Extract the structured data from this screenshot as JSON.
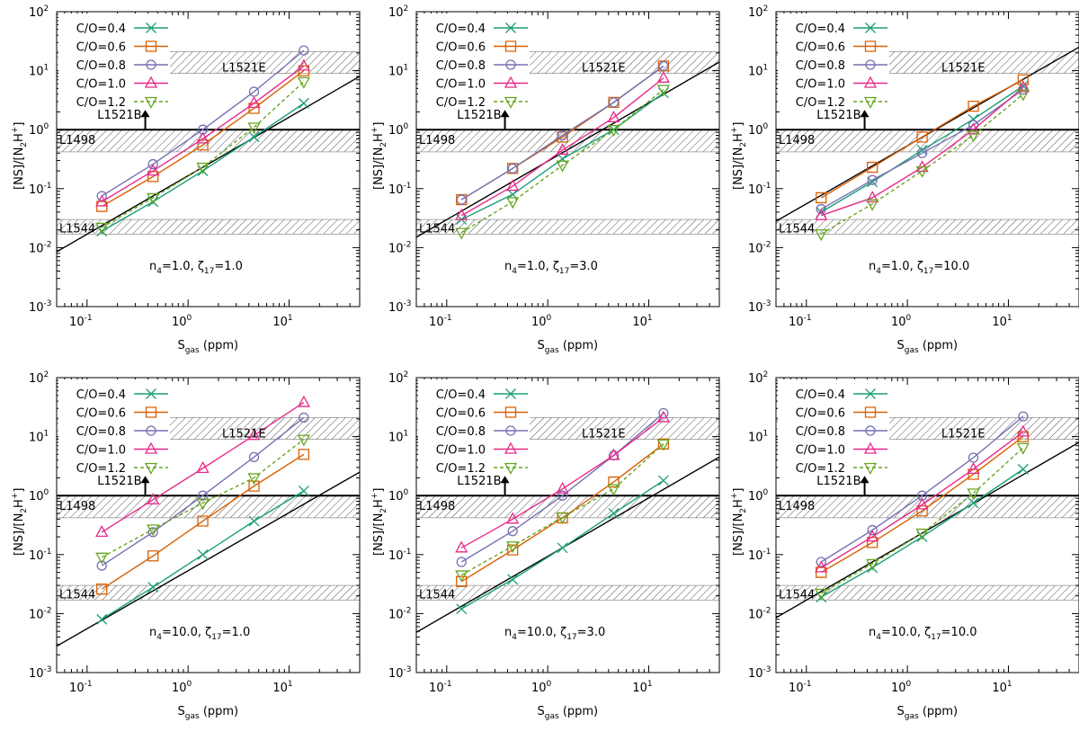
{
  "chart_data": {
    "type": "line",
    "layout": "2x3 grid of log-log panels",
    "xlabel": "S_gas (ppm)",
    "ylabel": "[NS]/[N2H+]",
    "xscale": "log",
    "yscale": "log",
    "xlim": [
      0.05,
      50
    ],
    "ylim": [
      0.001,
      100
    ],
    "x_tick_labels": [
      "10^-1",
      "10^0",
      "10^1"
    ],
    "y_tick_labels": [
      "10^-3",
      "10^-2",
      "10^-1",
      "10^0",
      "10^1",
      "10^2"
    ],
    "x": [
      0.14,
      0.45,
      1.4,
      4.5,
      14
    ],
    "legend": [
      "C/O=0.4",
      "C/O=0.6",
      "C/O=0.8",
      "C/O=1.0",
      "C/O=1.2"
    ],
    "series_styles": [
      {
        "name": "C/O=0.4",
        "color": "#1b9e77",
        "marker": "cross",
        "dash": "solid"
      },
      {
        "name": "C/O=0.6",
        "color": "#d95f02",
        "marker": "square",
        "dash": "solid"
      },
      {
        "name": "C/O=0.8",
        "color": "#7570b3",
        "marker": "circle",
        "dash": "solid"
      },
      {
        "name": "C/O=1.0",
        "color": "#e7298a",
        "marker": "triangle-up",
        "dash": "solid"
      },
      {
        "name": "C/O=1.2",
        "color": "#66a61e",
        "marker": "triangle-down",
        "dash": "dashed"
      }
    ],
    "observations": [
      {
        "name": "L1521E",
        "type": "band",
        "range": [
          9,
          21
        ]
      },
      {
        "name": "L1498",
        "type": "band",
        "range": [
          0.42,
          1.0
        ]
      },
      {
        "name": "L1544",
        "type": "band",
        "range": [
          0.017,
          0.03
        ]
      },
      {
        "name": "L1521B",
        "type": "lower-limit",
        "value": 1.0,
        "x": 0.32
      }
    ],
    "panels": [
      {
        "annotation": {
          "n_sub": "4",
          "n_val": "1.0",
          "zeta_sub": "17",
          "zeta_val": "1.0"
        },
        "series": [
          {
            "name": "C/O=0.4",
            "values": [
              0.019,
              0.06,
              0.2,
              0.75,
              2.8
            ]
          },
          {
            "name": "C/O=0.6",
            "values": [
              0.05,
              0.16,
              0.55,
              2.3,
              10
            ]
          },
          {
            "name": "C/O=0.8",
            "values": [
              0.075,
              0.26,
              1.0,
              4.4,
              22
            ]
          },
          {
            "name": "C/O=1.0",
            "values": [
              0.06,
              0.2,
              0.7,
              2.8,
              12
            ]
          },
          {
            "name": "C/O=1.2",
            "values": [
              0.022,
              0.07,
              0.23,
              1.1,
              6.5
            ]
          }
        ],
        "trend_line": {
          "x": [
            0.05,
            50
          ],
          "y": [
            0.0085,
            8
          ]
        }
      },
      {
        "annotation": {
          "n_sub": "4",
          "n_val": "1.0",
          "zeta_sub": "17",
          "zeta_val": "3.0"
        },
        "series": [
          {
            "name": "C/O=0.4",
            "values": [
              0.03,
              0.08,
              0.32,
              1.0,
              4.2
            ]
          },
          {
            "name": "C/O=0.6",
            "values": [
              0.065,
              0.22,
              0.75,
              2.9,
              12
            ]
          },
          {
            "name": "C/O=0.8",
            "values": [
              0.065,
              0.22,
              0.8,
              2.9,
              12
            ]
          },
          {
            "name": "C/O=1.0",
            "values": [
              0.035,
              0.11,
              0.45,
              1.6,
              7.5
            ]
          },
          {
            "name": "C/O=1.2",
            "values": [
              0.018,
              0.06,
              0.25,
              1.0,
              4.8
            ]
          }
        ],
        "trend_line": {
          "x": [
            0.05,
            50
          ],
          "y": [
            0.015,
            14
          ]
        }
      },
      {
        "annotation": {
          "n_sub": "4",
          "n_val": "1.0",
          "zeta_sub": "17",
          "zeta_val": "10.0"
        },
        "series": [
          {
            "name": "C/O=0.4",
            "values": [
              0.04,
              0.13,
              0.45,
              1.5,
              5.5
            ]
          },
          {
            "name": "C/O=0.6",
            "values": [
              0.07,
              0.23,
              0.75,
              2.5,
              7
            ]
          },
          {
            "name": "C/O=0.8",
            "values": [
              0.045,
              0.14,
              0.4,
              1.2,
              4.8
            ]
          },
          {
            "name": "C/O=1.0",
            "values": [
              0.035,
              0.07,
              0.23,
              1.0,
              5.2
            ]
          },
          {
            "name": "C/O=1.2",
            "values": [
              0.017,
              0.055,
              0.2,
              0.8,
              4
            ]
          }
        ],
        "trend_line": {
          "x": [
            0.05,
            50
          ],
          "y": [
            0.028,
            25
          ]
        }
      },
      {
        "annotation": {
          "n_sub": "4",
          "n_val": "10.0",
          "zeta_sub": "17",
          "zeta_val": "1.0"
        },
        "series": [
          {
            "name": "C/O=0.4",
            "values": [
              0.008,
              0.028,
              0.1,
              0.37,
              1.2
            ]
          },
          {
            "name": "C/O=0.6",
            "values": [
              0.026,
              0.095,
              0.37,
              1.45,
              5
            ]
          },
          {
            "name": "C/O=0.8",
            "values": [
              0.065,
              0.24,
              1.0,
              4.5,
              21
            ]
          },
          {
            "name": "C/O=1.0",
            "values": [
              0.24,
              0.85,
              2.9,
              10.5,
              38
            ]
          },
          {
            "name": "C/O=1.2",
            "values": [
              0.09,
              0.27,
              0.75,
              2.0,
              9
            ]
          }
        ],
        "trend_line": {
          "x": [
            0.05,
            50
          ],
          "y": [
            0.0028,
            2.5
          ]
        }
      },
      {
        "annotation": {
          "n_sub": "4",
          "n_val": "10.0",
          "zeta_sub": "17",
          "zeta_val": "3.0"
        },
        "series": [
          {
            "name": "C/O=0.4",
            "values": [
              0.012,
              0.038,
              0.13,
              0.5,
              1.8
            ]
          },
          {
            "name": "C/O=0.6",
            "values": [
              0.035,
              0.12,
              0.42,
              1.7,
              7.5
            ]
          },
          {
            "name": "C/O=0.8",
            "values": [
              0.075,
              0.25,
              1.0,
              4.8,
              25
            ]
          },
          {
            "name": "C/O=1.0",
            "values": [
              0.13,
              0.4,
              1.3,
              4.8,
              21
            ]
          },
          {
            "name": "C/O=1.2",
            "values": [
              0.045,
              0.14,
              0.43,
              1.3,
              7.5
            ]
          }
        ],
        "trend_line": {
          "x": [
            0.05,
            50
          ],
          "y": [
            0.0048,
            4.5
          ]
        }
      },
      {
        "annotation": {
          "n_sub": "4",
          "n_val": "10.0",
          "zeta_sub": "17",
          "zeta_val": "10.0"
        },
        "series": [
          {
            "name": "C/O=0.4",
            "values": [
              0.019,
              0.06,
              0.2,
              0.75,
              2.8
            ]
          },
          {
            "name": "C/O=0.6",
            "values": [
              0.05,
              0.16,
              0.55,
              2.3,
              10
            ]
          },
          {
            "name": "C/O=0.8",
            "values": [
              0.075,
              0.26,
              1.0,
              4.4,
              22
            ]
          },
          {
            "name": "C/O=1.0",
            "values": [
              0.06,
              0.2,
              0.7,
              2.8,
              12
            ]
          },
          {
            "name": "C/O=1.2",
            "values": [
              0.022,
              0.07,
              0.23,
              1.1,
              6.5
            ]
          }
        ],
        "trend_line": {
          "x": [
            0.05,
            50
          ],
          "y": [
            0.0085,
            8
          ]
        }
      }
    ]
  }
}
